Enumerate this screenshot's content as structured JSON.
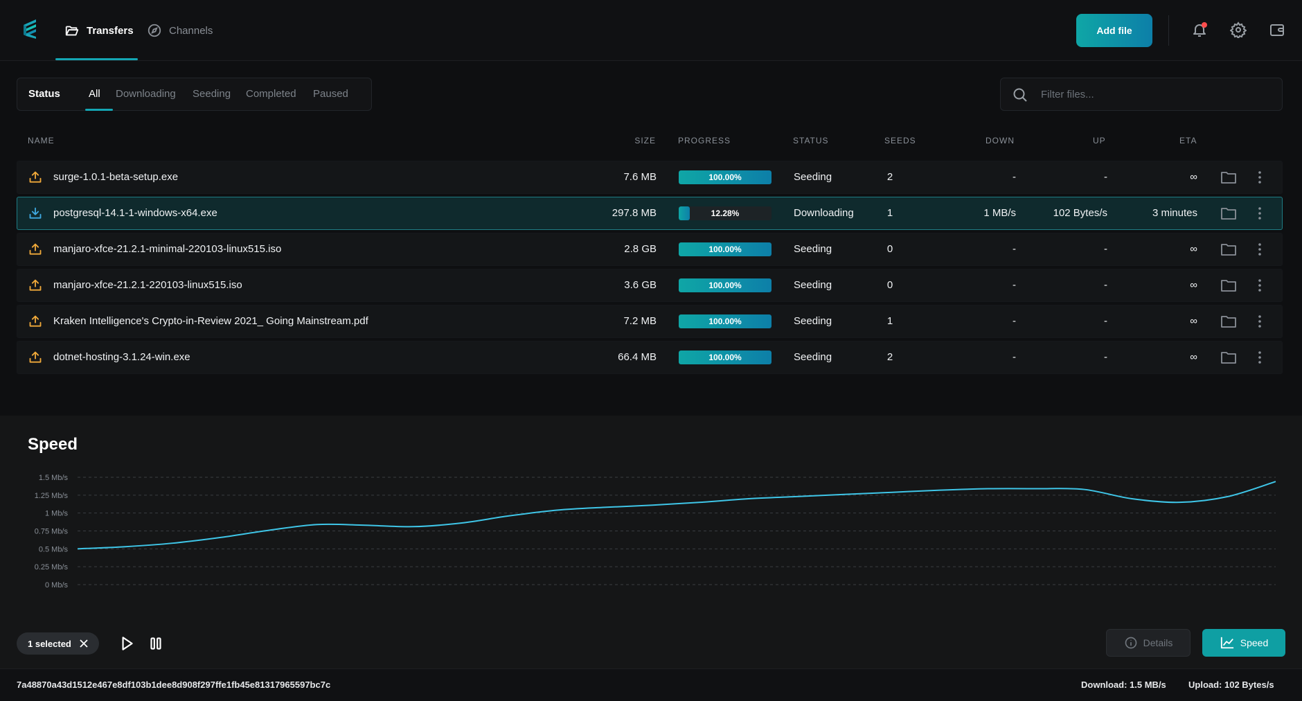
{
  "nav": {
    "tabs": [
      {
        "label": "Transfers",
        "icon": "folder-open-icon"
      },
      {
        "label": "Channels",
        "icon": "compass-icon"
      }
    ],
    "add_file_label": "Add file"
  },
  "filters": {
    "status_label": "Status",
    "tabs": [
      "All",
      "Downloading",
      "Seeding",
      "Completed",
      "Paused"
    ],
    "active": "All"
  },
  "search": {
    "placeholder": "Filter files...",
    "value": ""
  },
  "table": {
    "headers": {
      "name": "NAME",
      "size": "SIZE",
      "progress": "PROGRESS",
      "status": "STATUS",
      "seeds": "SEEDS",
      "down": "DOWN",
      "up": "UP",
      "eta": "ETA"
    },
    "rows": [
      {
        "name": "surge-1.0.1-beta-setup.exe",
        "size": "7.6 MB",
        "progress": 100,
        "progress_label": "100.00%",
        "status": "Seeding",
        "seeds": "2",
        "down": "-",
        "up": "-",
        "eta": "∞",
        "direction": "upload"
      },
      {
        "name": "postgresql-14.1-1-windows-x64.exe",
        "size": "297.8 MB",
        "progress": 12.28,
        "progress_label": "12.28%",
        "status": "Downloading",
        "seeds": "1",
        "down": "1 MB/s",
        "up": "102 Bytes/s",
        "eta": "3 minutes",
        "direction": "download",
        "selected": true
      },
      {
        "name": "manjaro-xfce-21.2.1-minimal-220103-linux515.iso",
        "size": "2.8 GB",
        "progress": 100,
        "progress_label": "100.00%",
        "status": "Seeding",
        "seeds": "0",
        "down": "-",
        "up": "-",
        "eta": "∞",
        "direction": "upload"
      },
      {
        "name": "manjaro-xfce-21.2.1-220103-linux515.iso",
        "size": "3.6 GB",
        "progress": 100,
        "progress_label": "100.00%",
        "status": "Seeding",
        "seeds": "0",
        "down": "-",
        "up": "-",
        "eta": "∞",
        "direction": "upload"
      },
      {
        "name": "Kraken Intelligence's Crypto-in-Review 2021_ Going Mainstream.pdf",
        "size": "7.2 MB",
        "progress": 100,
        "progress_label": "100.00%",
        "status": "Seeding",
        "seeds": "1",
        "down": "-",
        "up": "-",
        "eta": "∞",
        "direction": "upload"
      },
      {
        "name": "dotnet-hosting-3.1.24-win.exe",
        "size": "66.4 MB",
        "progress": 100,
        "progress_label": "100.00%",
        "status": "Seeding",
        "seeds": "2",
        "down": "-",
        "up": "-",
        "eta": "∞",
        "direction": "upload"
      }
    ]
  },
  "speed_panel": {
    "title": "Speed",
    "selected_label": "1 selected",
    "details_label": "Details",
    "speed_label": "Speed"
  },
  "chart_data": {
    "type": "line",
    "title": "Speed",
    "y_ticks": [
      "0 Mb/s",
      "0.25 Mb/s",
      "0.5 Mb/s",
      "0.75 Mb/s",
      "1 Mb/s",
      "1.25 Mb/s",
      "1.5 Mb/s"
    ],
    "ylim": [
      0,
      1.5
    ],
    "grid": true,
    "line_color": "#3fc6e8",
    "series": [
      {
        "values": [
          0.5,
          0.53,
          0.58,
          0.66,
          0.76,
          0.84,
          0.83,
          0.81,
          0.86,
          0.96,
          1.04,
          1.08,
          1.11,
          1.15,
          1.2,
          1.23,
          1.26,
          1.29,
          1.32,
          1.34,
          1.34,
          1.33,
          1.2,
          1.15,
          1.23,
          1.44
        ]
      }
    ]
  },
  "footer": {
    "hash": "7a48870a43d1512e467e8df103b1dee8d908f297ffe1fb45e81317965597bc7c",
    "download": "Download: 1.5 MB/s",
    "upload": "Upload: 102 Bytes/s"
  },
  "colors": {
    "accent": "#14a6b4",
    "upload_icon": "#f0a93a",
    "download_icon": "#3fa9e0",
    "notification": "#ff4d4d"
  }
}
